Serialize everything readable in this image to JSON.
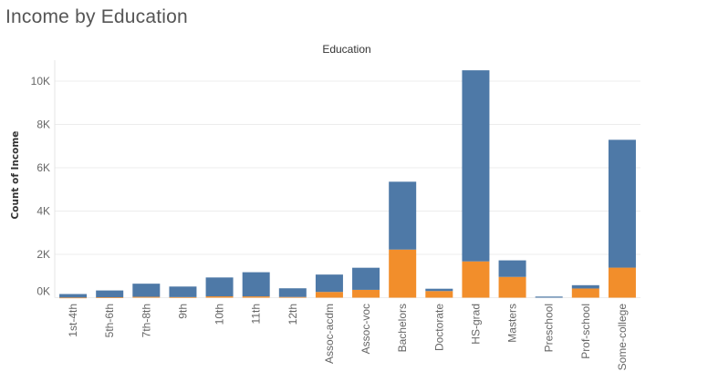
{
  "page_title": "Income by Education",
  "chart_data": {
    "type": "bar",
    "stacked": true,
    "title": "Income by Education",
    "column_header": "Education",
    "xlabel": "",
    "ylabel": "Count of Income",
    "ylim": [
      0,
      11000
    ],
    "yticks": [
      0,
      2000,
      4000,
      6000,
      8000,
      10000
    ],
    "ytick_labels": [
      "0K",
      "2K",
      "4K",
      "6K",
      "8K",
      "10K"
    ],
    "grid": true,
    "categories": [
      "1st-4th",
      "5th-6th",
      "7th-8th",
      "9th",
      "10th",
      "11th",
      "12th",
      "Assoc-acdm",
      "Assoc-voc",
      "Bachelors",
      "Doctorate",
      "HS-grad",
      "Masters",
      "Preschool",
      "Prof-school",
      "Some-college"
    ],
    "series": [
      {
        "color": "#f28e2b",
        "values": [
          6,
          16,
          40,
          27,
          62,
          60,
          33,
          265,
          361,
          2221,
          306,
          1675,
          959,
          0,
          423,
          1387
        ]
      },
      {
        "color": "#4e79a7",
        "values": [
          162,
          317,
          606,
          487,
          871,
          1115,
          400,
          802,
          1021,
          3134,
          107,
          8826,
          764,
          51,
          153,
          5904
        ]
      }
    ]
  }
}
